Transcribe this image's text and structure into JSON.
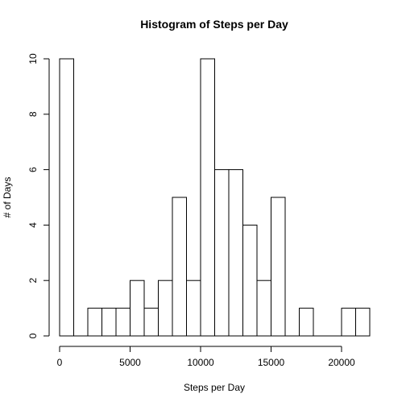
{
  "chart_data": {
    "type": "bar",
    "title": "Histogram of Steps per Day",
    "xlabel": "Steps per Day",
    "ylabel": "# of Days",
    "xlim": [
      0,
      22000
    ],
    "ylim": [
      0,
      10
    ],
    "bin_width": 1000,
    "bins": [
      {
        "start": 0,
        "end": 1000,
        "count": 10
      },
      {
        "start": 1000,
        "end": 2000,
        "count": 0
      },
      {
        "start": 2000,
        "end": 3000,
        "count": 1
      },
      {
        "start": 3000,
        "end": 4000,
        "count": 1
      },
      {
        "start": 4000,
        "end": 5000,
        "count": 1
      },
      {
        "start": 5000,
        "end": 6000,
        "count": 2
      },
      {
        "start": 6000,
        "end": 7000,
        "count": 1
      },
      {
        "start": 7000,
        "end": 8000,
        "count": 2
      },
      {
        "start": 8000,
        "end": 9000,
        "count": 5
      },
      {
        "start": 9000,
        "end": 10000,
        "count": 2
      },
      {
        "start": 10000,
        "end": 11000,
        "count": 10
      },
      {
        "start": 11000,
        "end": 12000,
        "count": 6
      },
      {
        "start": 12000,
        "end": 13000,
        "count": 6
      },
      {
        "start": 13000,
        "end": 14000,
        "count": 4
      },
      {
        "start": 14000,
        "end": 15000,
        "count": 2
      },
      {
        "start": 15000,
        "end": 16000,
        "count": 5
      },
      {
        "start": 16000,
        "end": 17000,
        "count": 0
      },
      {
        "start": 17000,
        "end": 18000,
        "count": 1
      },
      {
        "start": 18000,
        "end": 19000,
        "count": 0
      },
      {
        "start": 19000,
        "end": 20000,
        "count": 0
      },
      {
        "start": 20000,
        "end": 21000,
        "count": 1
      },
      {
        "start": 21000,
        "end": 22000,
        "count": 1
      }
    ],
    "x_ticks": [
      0,
      5000,
      10000,
      15000,
      20000
    ],
    "x_tick_labels": [
      "0",
      "5000",
      "10000",
      "15000",
      "20000"
    ],
    "y_ticks": [
      0,
      2,
      4,
      6,
      8,
      10
    ],
    "y_tick_labels": [
      "0",
      "2",
      "4",
      "6",
      "8",
      "10"
    ],
    "grid": false,
    "legend": "none"
  }
}
